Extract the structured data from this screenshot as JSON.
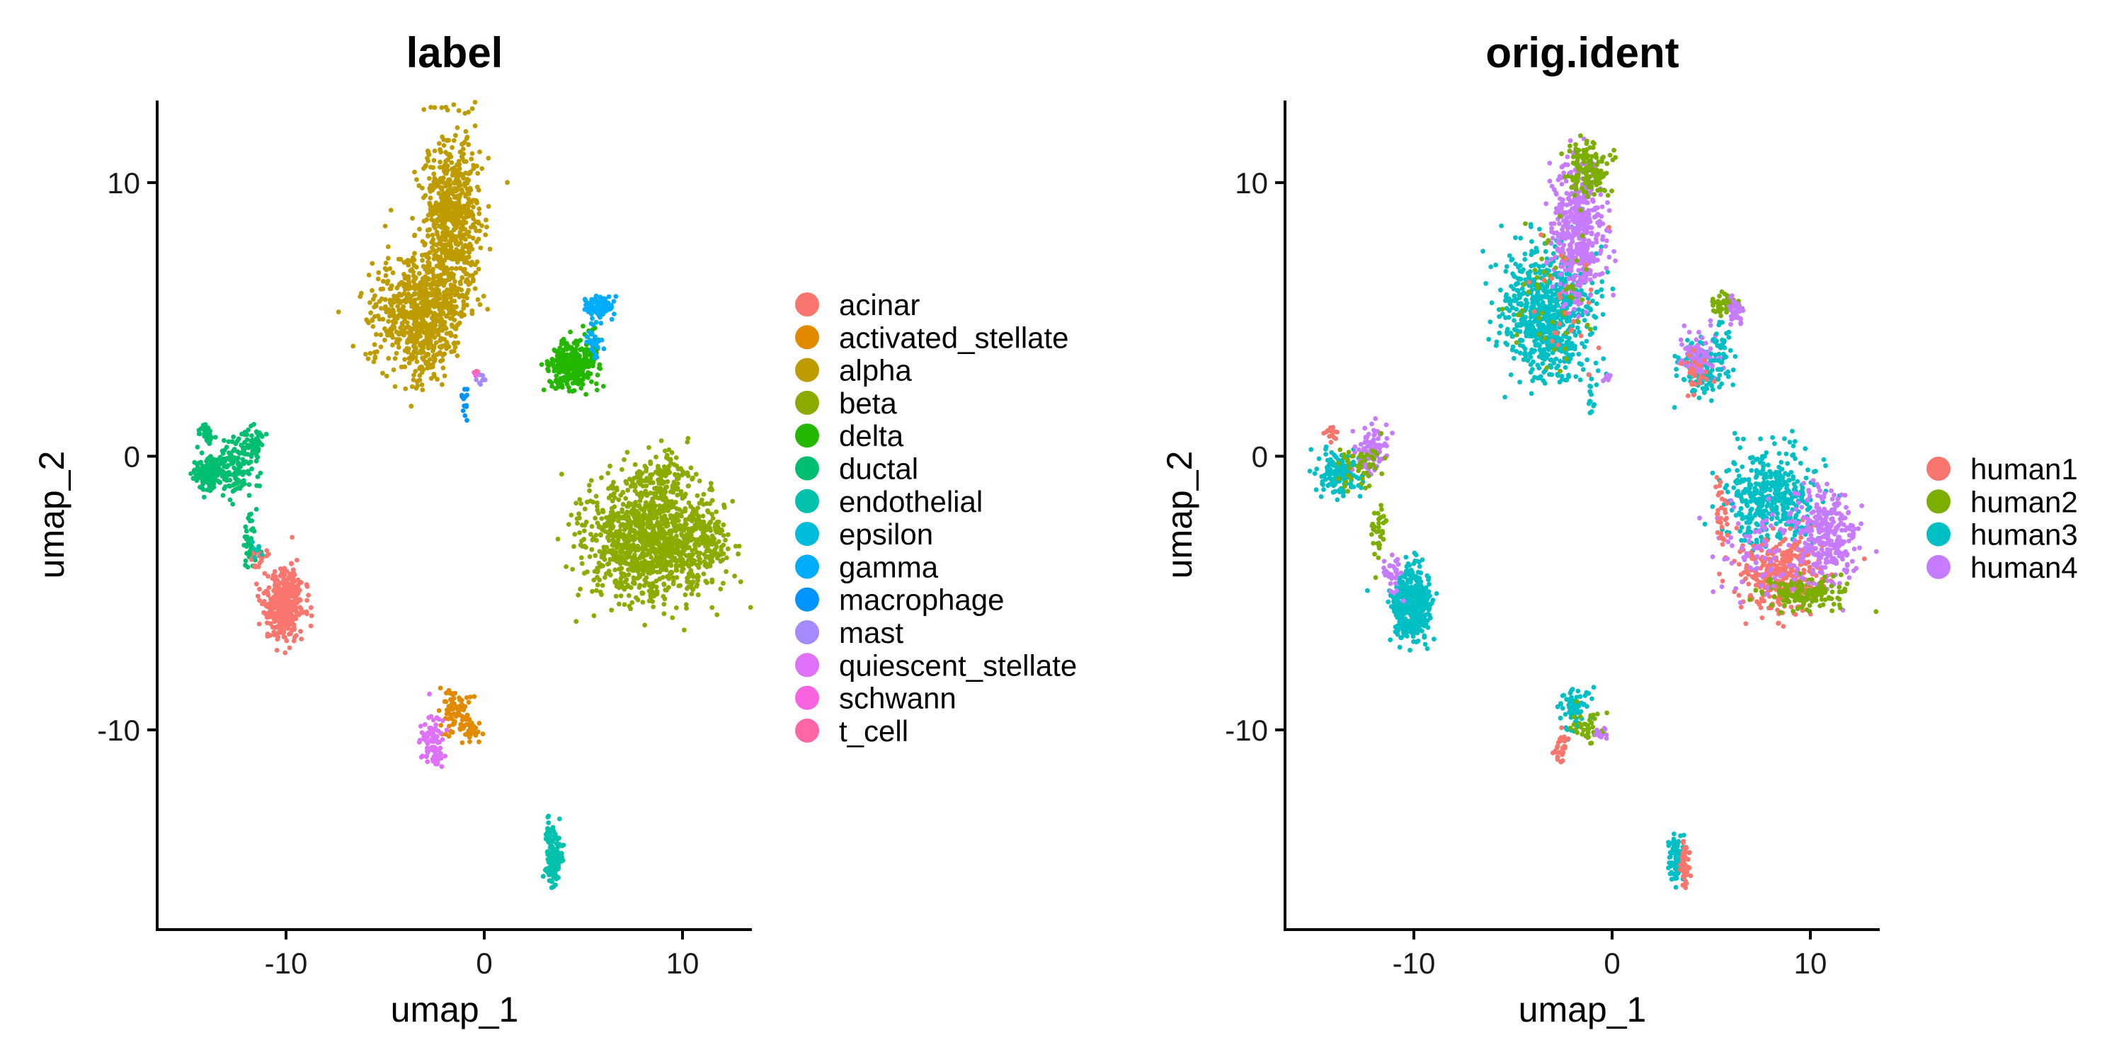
{
  "chart_data": [
    {
      "type": "scatter",
      "title": "label",
      "xlabel": "umap_1",
      "ylabel": "umap_2",
      "xlim": [
        -16.5,
        13.5
      ],
      "ylim": [
        -17.3,
        13
      ],
      "xticks": [
        {
          "value": -10,
          "label": "-10"
        },
        {
          "value": 0,
          "label": "0"
        },
        {
          "value": 10,
          "label": "10"
        }
      ],
      "yticks": [
        {
          "value": -10,
          "label": "-10"
        },
        {
          "value": 0,
          "label": "0"
        },
        {
          "value": 10,
          "label": "10"
        }
      ],
      "legend_position": "right",
      "legend_title": "",
      "categories": [
        {
          "name": "acinar",
          "color": "#F8766D"
        },
        {
          "name": "activated_stellate",
          "color": "#E18A00"
        },
        {
          "name": "alpha",
          "color": "#BE9C00"
        },
        {
          "name": "beta",
          "color": "#8CAB00"
        },
        {
          "name": "delta",
          "color": "#24B700"
        },
        {
          "name": "ductal",
          "color": "#00BE70"
        },
        {
          "name": "endothelial",
          "color": "#00C1AB"
        },
        {
          "name": "epsilon",
          "color": "#00BBDA"
        },
        {
          "name": "gamma",
          "color": "#00ACFC"
        },
        {
          "name": "macrophage",
          "color": "#0094FF"
        },
        {
          "name": "mast",
          "color": "#A58AFF"
        },
        {
          "name": "quiescent_stellate",
          "color": "#DF70F8"
        },
        {
          "name": "schwann",
          "color": "#F863DF"
        },
        {
          "name": "t_cell",
          "color": "#FF66A8"
        }
      ],
      "clusters": [
        {
          "category": "alpha",
          "cx": -3.3,
          "cy": 5.3,
          "sx": 1.3,
          "sy": 1.3,
          "n": 650
        },
        {
          "category": "alpha",
          "cx": -1.6,
          "cy": 8.7,
          "sx": 0.85,
          "sy": 1.9,
          "n": 650
        },
        {
          "category": "alpha",
          "cx": -2.9,
          "cy": 3.8,
          "sx": 0.7,
          "sy": 0.6,
          "n": 60
        },
        {
          "category": "beta",
          "cx": 8.3,
          "cy": -3.2,
          "sx": 1.9,
          "sy": 1.2,
          "n": 1050
        },
        {
          "category": "beta",
          "cx": 8.8,
          "cy": -1.0,
          "sx": 0.9,
          "sy": 0.8,
          "n": 160
        },
        {
          "category": "beta",
          "cx": 11.2,
          "cy": -2.9,
          "sx": 0.6,
          "sy": 0.8,
          "n": 120
        },
        {
          "category": "delta",
          "cx": 4.2,
          "cy": 3.3,
          "sx": 0.6,
          "sy": 0.5,
          "n": 220
        },
        {
          "category": "delta",
          "cx": 5.2,
          "cy": 3.5,
          "sx": 0.4,
          "sy": 0.55,
          "n": 90
        },
        {
          "category": "gamma",
          "cx": 5.8,
          "cy": 5.5,
          "sx": 0.4,
          "sy": 0.2,
          "n": 90
        },
        {
          "category": "gamma",
          "cx": 5.6,
          "cy": 4.3,
          "sx": 0.25,
          "sy": 0.5,
          "n": 30
        },
        {
          "category": "ductal",
          "cx": -13.9,
          "cy": -0.6,
          "sx": 0.5,
          "sy": 0.35,
          "n": 150
        },
        {
          "category": "ductal",
          "cx": -12.5,
          "cy": -0.4,
          "sx": 0.5,
          "sy": 0.6,
          "n": 120
        },
        {
          "category": "ductal",
          "cx": -11.7,
          "cy": 0.5,
          "sx": 0.35,
          "sy": 0.3,
          "n": 50
        },
        {
          "category": "ductal",
          "cx": -14.0,
          "cy": 0.8,
          "sx": 0.25,
          "sy": 0.25,
          "n": 30
        },
        {
          "category": "ductal",
          "cx": -11.8,
          "cy": -2.8,
          "sx": 0.25,
          "sy": 0.9,
          "n": 40
        },
        {
          "category": "acinar",
          "cx": -10.1,
          "cy": -5.4,
          "sx": 0.55,
          "sy": 0.75,
          "n": 420
        },
        {
          "category": "acinar",
          "cx": -11.3,
          "cy": -3.8,
          "sx": 0.2,
          "sy": 0.3,
          "n": 20
        },
        {
          "category": "endothelial",
          "cx": 3.5,
          "cy": -14.8,
          "sx": 0.25,
          "sy": 0.55,
          "n": 120
        },
        {
          "category": "endothelial",
          "cx": 3.2,
          "cy": -13.6,
          "sx": 0.15,
          "sy": 0.3,
          "n": 20
        },
        {
          "category": "endothelial",
          "cx": -11.5,
          "cy": -3.4,
          "sx": 0.2,
          "sy": 0.3,
          "n": 8
        },
        {
          "category": "activated_stellate",
          "cx": -1.5,
          "cy": -9.3,
          "sx": 0.5,
          "sy": 0.55,
          "n": 90
        },
        {
          "category": "activated_stellate",
          "cx": -0.6,
          "cy": -10.0,
          "sx": 0.3,
          "sy": 0.2,
          "n": 30
        },
        {
          "category": "quiescent_stellate",
          "cx": -2.6,
          "cy": -10.3,
          "sx": 0.35,
          "sy": 0.5,
          "n": 70
        },
        {
          "category": "quiescent_stellate",
          "cx": -2.4,
          "cy": -11.0,
          "sx": 0.25,
          "sy": 0.2,
          "n": 20
        },
        {
          "category": "macrophage",
          "cx": -1.0,
          "cy": 2.0,
          "sx": 0.1,
          "sy": 0.35,
          "n": 14
        },
        {
          "category": "mast",
          "cx": -0.2,
          "cy": 2.8,
          "sx": 0.15,
          "sy": 0.15,
          "n": 8
        },
        {
          "category": "schwann",
          "cx": -0.5,
          "cy": 3.0,
          "sx": 0.06,
          "sy": 0.06,
          "n": 3
        },
        {
          "category": "t_cell",
          "cx": -0.4,
          "cy": 3.1,
          "sx": 0.05,
          "sy": 0.05,
          "n": 2
        }
      ]
    },
    {
      "type": "scatter",
      "title": "orig.ident",
      "xlabel": "umap_1",
      "ylabel": "umap_2",
      "xlim": [
        -16.5,
        13.5
      ],
      "ylim": [
        -17.3,
        13
      ],
      "xticks": [
        {
          "value": -10,
          "label": "-10"
        },
        {
          "value": 0,
          "label": "0"
        },
        {
          "value": 10,
          "label": "10"
        }
      ],
      "yticks": [
        {
          "value": -10,
          "label": "-10"
        },
        {
          "value": 0,
          "label": "0"
        },
        {
          "value": 10,
          "label": "10"
        }
      ],
      "legend_position": "right",
      "legend_title": "",
      "categories": [
        {
          "name": "human1",
          "color": "#F8766D"
        },
        {
          "name": "human2",
          "color": "#7CAE00"
        },
        {
          "name": "human3",
          "color": "#00BFC4"
        },
        {
          "name": "human4",
          "color": "#C77CFF"
        }
      ],
      "clusters": [
        {
          "category": "human3",
          "cx": -3.3,
          "cy": 5.3,
          "sx": 1.3,
          "sy": 1.3,
          "n": 650
        },
        {
          "category": "human4",
          "cx": -1.7,
          "cy": 8.2,
          "sx": 0.75,
          "sy": 1.5,
          "n": 480
        },
        {
          "category": "human2",
          "cx": -1.2,
          "cy": 10.5,
          "sx": 0.6,
          "sy": 0.6,
          "n": 140
        },
        {
          "category": "human3",
          "cx": -2.9,
          "cy": 3.8,
          "sx": 0.7,
          "sy": 0.6,
          "n": 60
        },
        {
          "category": "human2",
          "cx": -3.0,
          "cy": 6.0,
          "sx": 1.2,
          "sy": 1.6,
          "n": 50
        },
        {
          "category": "human1",
          "cx": -2.5,
          "cy": 6.0,
          "sx": 1.2,
          "sy": 1.8,
          "n": 25
        },
        {
          "category": "human3",
          "cx": 8.0,
          "cy": -1.5,
          "sx": 1.3,
          "sy": 1.0,
          "n": 430
        },
        {
          "category": "human1",
          "cx": 8.5,
          "cy": -4.3,
          "sx": 1.3,
          "sy": 0.8,
          "n": 330
        },
        {
          "category": "human4",
          "cx": 10.8,
          "cy": -3.0,
          "sx": 0.9,
          "sy": 1.0,
          "n": 290
        },
        {
          "category": "human2",
          "cx": 9.8,
          "cy": -5.0,
          "sx": 1.3,
          "sy": 0.35,
          "n": 150
        },
        {
          "category": "human4",
          "cx": 7.5,
          "cy": -3.5,
          "sx": 1.6,
          "sy": 1.0,
          "n": 80
        },
        {
          "category": "human1",
          "cx": 5.6,
          "cy": -2.2,
          "sx": 0.2,
          "sy": 0.8,
          "n": 30
        },
        {
          "category": "human3",
          "cx": 4.5,
          "cy": 3.2,
          "sx": 0.7,
          "sy": 0.6,
          "n": 130
        },
        {
          "category": "human4",
          "cx": 4.4,
          "cy": 3.8,
          "sx": 0.5,
          "sy": 0.5,
          "n": 90
        },
        {
          "category": "human2",
          "cx": 5.8,
          "cy": 5.5,
          "sx": 0.4,
          "sy": 0.2,
          "n": 60
        },
        {
          "category": "human4",
          "cx": 6.2,
          "cy": 5.3,
          "sx": 0.25,
          "sy": 0.3,
          "n": 40
        },
        {
          "category": "human1",
          "cx": 4.2,
          "cy": 3.0,
          "sx": 0.5,
          "sy": 0.5,
          "n": 30
        },
        {
          "category": "human3",
          "cx": 5.5,
          "cy": 3.8,
          "sx": 0.3,
          "sy": 0.5,
          "n": 30
        },
        {
          "category": "human3",
          "cx": -13.8,
          "cy": -0.6,
          "sx": 0.6,
          "sy": 0.4,
          "n": 170
        },
        {
          "category": "human4",
          "cx": -12.2,
          "cy": 0.2,
          "sx": 0.5,
          "sy": 0.5,
          "n": 90
        },
        {
          "category": "human2",
          "cx": -12.8,
          "cy": -0.2,
          "sx": 0.7,
          "sy": 0.5,
          "n": 50
        },
        {
          "category": "human1",
          "cx": -14.2,
          "cy": 0.9,
          "sx": 0.2,
          "sy": 0.2,
          "n": 15
        },
        {
          "category": "human2",
          "cx": -11.8,
          "cy": -2.8,
          "sx": 0.25,
          "sy": 0.9,
          "n": 35
        },
        {
          "category": "human3",
          "cx": -10.1,
          "cy": -5.4,
          "sx": 0.55,
          "sy": 0.75,
          "n": 430
        },
        {
          "category": "human4",
          "cx": -11.0,
          "cy": -4.3,
          "sx": 0.3,
          "sy": 0.4,
          "n": 30
        },
        {
          "category": "human3",
          "cx": 3.2,
          "cy": -14.7,
          "sx": 0.2,
          "sy": 0.5,
          "n": 70
        },
        {
          "category": "human1",
          "cx": 3.7,
          "cy": -15.0,
          "sx": 0.15,
          "sy": 0.45,
          "n": 45
        },
        {
          "category": "human3",
          "cx": -2.0,
          "cy": -9.2,
          "sx": 0.5,
          "sy": 0.45,
          "n": 70
        },
        {
          "category": "human2",
          "cx": -1.2,
          "cy": -9.9,
          "sx": 0.5,
          "sy": 0.35,
          "n": 35
        },
        {
          "category": "human1",
          "cx": -2.6,
          "cy": -10.6,
          "sx": 0.25,
          "sy": 0.4,
          "n": 30
        },
        {
          "category": "human4",
          "cx": -0.6,
          "cy": -10.1,
          "sx": 0.25,
          "sy": 0.2,
          "n": 12
        },
        {
          "category": "human3",
          "cx": -1.0,
          "cy": 2.0,
          "sx": 0.1,
          "sy": 0.35,
          "n": 12
        },
        {
          "category": "human4",
          "cx": -0.2,
          "cy": 2.9,
          "sx": 0.15,
          "sy": 0.15,
          "n": 8
        }
      ]
    }
  ]
}
